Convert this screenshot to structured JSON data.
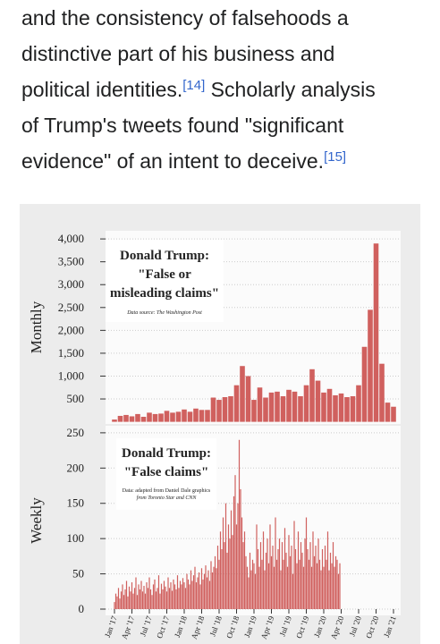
{
  "article": {
    "lines": [
      [
        "and the consistency of falsehoods a"
      ],
      [
        "distinctive part of his business and"
      ],
      [
        "political identities.",
        "[14]",
        " Scholarly analysis"
      ],
      [
        "of Trump's tweets found \"significant"
      ],
      [
        "evidence\" of an intent to deceive.",
        "[15]"
      ]
    ]
  },
  "chart_data": [
    {
      "type": "bar",
      "title_lines": [
        "Donald Trump:",
        "\"False or",
        "misleading claims\""
      ],
      "source": "Data source: The Washington Post",
      "ylabel": "Monthly",
      "color": "#d0605e",
      "grid": true,
      "categories": [
        "Jan '17",
        null,
        null,
        "Apr '17",
        null,
        null,
        "Jul '17",
        null,
        null,
        "Oct '17",
        null,
        null,
        "Jan '18",
        null,
        null,
        "Apr '18",
        null,
        null,
        "Jul '18",
        null,
        null,
        "Oct '18",
        null,
        null,
        "Jan '19",
        null,
        null,
        "Apr '19",
        null,
        null,
        "Jul '19",
        null,
        null,
        "Oct '19",
        null,
        null,
        "Jan '20",
        null,
        null,
        "Apr '20",
        null,
        null,
        "Jul '20",
        null,
        null,
        "Oct '20",
        null,
        null,
        "Jan '21"
      ],
      "values": [
        50,
        130,
        150,
        120,
        170,
        110,
        200,
        170,
        180,
        240,
        200,
        220,
        270,
        220,
        290,
        260,
        260,
        530,
        480,
        540,
        560,
        800,
        1220,
        1000,
        480,
        750,
        530,
        640,
        660,
        560,
        700,
        660,
        560,
        800,
        1150,
        900,
        640,
        720,
        580,
        620,
        540,
        560,
        800,
        1640,
        2450,
        3900,
        1270,
        420,
        330
      ],
      "ylim": [
        0,
        4100
      ],
      "yticks": [
        {
          "value": 500,
          "label": "500"
        },
        {
          "value": 1000,
          "label": "1,000"
        },
        {
          "value": 1500,
          "label": "1,500"
        },
        {
          "value": 2000,
          "label": "2,000"
        },
        {
          "value": 2500,
          "label": "2,500"
        },
        {
          "value": 3000,
          "label": "3,000"
        },
        {
          "value": 3500,
          "label": "3,500"
        },
        {
          "value": 4000,
          "label": "4,000"
        }
      ]
    },
    {
      "type": "bar",
      "title_lines": [
        "Donald Trump:",
        "\"False claims\""
      ],
      "source_lines": [
        "Data: adapted from Daniel Dale graphics",
        "from Toronto Star and CNN"
      ],
      "ylabel": "Weekly",
      "color": "#d0605e",
      "grid": true,
      "values": [
        10,
        22,
        18,
        30,
        15,
        25,
        35,
        20,
        28,
        40,
        18,
        32,
        25,
        38,
        22,
        30,
        45,
        20,
        35,
        28,
        40,
        25,
        33,
        22,
        38,
        30,
        45,
        28,
        20,
        35,
        42,
        25,
        30,
        48,
        22,
        36,
        28,
        40,
        32,
        25,
        45,
        30,
        38,
        26,
        42,
        35,
        28,
        48,
        30,
        40,
        35,
        44,
        38,
        30,
        50,
        42,
        35,
        55,
        40,
        48,
        60,
        38,
        45,
        52,
        35,
        58,
        42,
        50,
        62,
        45,
        55,
        40,
        68,
        52,
        60,
        75,
        58,
        90,
        70,
        110,
        85,
        130,
        95,
        150,
        80,
        120,
        100,
        140,
        105,
        160,
        190,
        120,
        150,
        240,
        170,
        130,
        95,
        110,
        75,
        60,
        45,
        80,
        55,
        70,
        65,
        50,
        120,
        85,
        60,
        95,
        70,
        110,
        55,
        80,
        100,
        65,
        120,
        75,
        90,
        60,
        130,
        70,
        85,
        100,
        55,
        95,
        70,
        115,
        80,
        60,
        105,
        75,
        90,
        50,
        125,
        85,
        65,
        110,
        70,
        95,
        80,
        60,
        100,
        130,
        85,
        70,
        95,
        60,
        110,
        75,
        90,
        65,
        100,
        70,
        55,
        85,
        60,
        90,
        70,
        110,
        55,
        80,
        65,
        95,
        60,
        75,
        70,
        50,
        65
      ],
      "ylim": [
        0,
        260
      ],
      "yticks": [
        0,
        50,
        100,
        150,
        200,
        250
      ]
    }
  ]
}
